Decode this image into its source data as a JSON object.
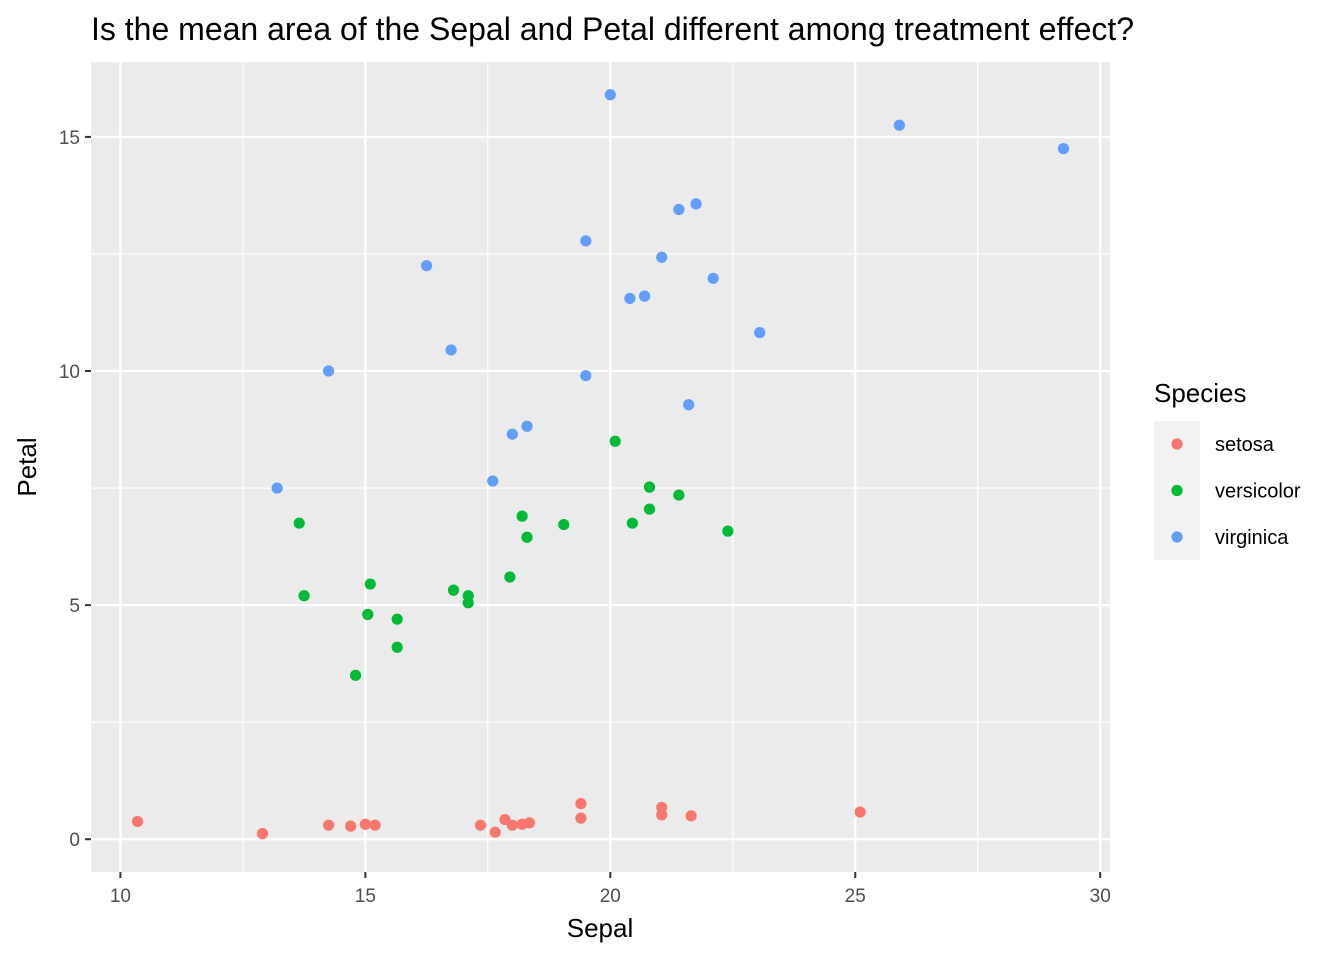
{
  "chart_data": {
    "type": "scatter",
    "title": "Is the mean area of the Sepal and Petal different among treatment effect?",
    "xlabel": "Sepal",
    "ylabel": "Petal",
    "xlim": [
      9.4,
      30.2
    ],
    "ylim": [
      -0.7,
      16.6
    ],
    "x_ticks": [
      10,
      15,
      20,
      25,
      30
    ],
    "y_ticks": [
      0,
      5,
      10,
      15
    ],
    "x_ticks_labels": [
      "10",
      "15",
      "20",
      "25",
      "30"
    ],
    "y_ticks_labels": [
      "0",
      "5",
      "10",
      "15"
    ],
    "grid": true,
    "legend": {
      "title": "Species",
      "placement": "right"
    },
    "series": [
      {
        "name": "setosa",
        "color": "#F8766D",
        "points": [
          [
            10.35,
            0.38
          ],
          [
            12.9,
            0.12
          ],
          [
            14.25,
            0.3
          ],
          [
            14.7,
            0.28
          ],
          [
            15.0,
            0.32
          ],
          [
            15.2,
            0.3
          ],
          [
            17.35,
            0.3
          ],
          [
            17.65,
            0.15
          ],
          [
            17.85,
            0.42
          ],
          [
            18.0,
            0.3
          ],
          [
            18.2,
            0.32
          ],
          [
            18.35,
            0.35
          ],
          [
            19.4,
            0.76
          ],
          [
            19.4,
            0.45
          ],
          [
            21.05,
            0.68
          ],
          [
            21.05,
            0.52
          ],
          [
            21.65,
            0.5
          ],
          [
            25.1,
            0.58
          ]
        ]
      },
      {
        "name": "versicolor",
        "color": "#00BA38",
        "points": [
          [
            13.65,
            6.75
          ],
          [
            13.75,
            5.2
          ],
          [
            14.8,
            3.5
          ],
          [
            15.05,
            4.8
          ],
          [
            15.1,
            5.45
          ],
          [
            15.65,
            4.7
          ],
          [
            15.65,
            4.1
          ],
          [
            16.8,
            5.32
          ],
          [
            17.1,
            5.2
          ],
          [
            17.1,
            5.05
          ],
          [
            17.95,
            5.6
          ],
          [
            18.2,
            6.9
          ],
          [
            18.3,
            6.45
          ],
          [
            19.05,
            6.72
          ],
          [
            20.1,
            8.5
          ],
          [
            20.45,
            6.75
          ],
          [
            20.8,
            7.05
          ],
          [
            20.8,
            7.52
          ],
          [
            21.4,
            7.35
          ],
          [
            22.4,
            6.58
          ]
        ]
      },
      {
        "name": "virginica",
        "color": "#619CFF",
        "points": [
          [
            13.2,
            7.5
          ],
          [
            14.25,
            10.0
          ],
          [
            16.25,
            12.25
          ],
          [
            16.75,
            10.45
          ],
          [
            17.6,
            7.65
          ],
          [
            18.0,
            8.65
          ],
          [
            18.3,
            8.82
          ],
          [
            19.5,
            12.78
          ],
          [
            19.5,
            9.9
          ],
          [
            20.0,
            15.9
          ],
          [
            20.4,
            11.55
          ],
          [
            20.7,
            11.6
          ],
          [
            21.05,
            12.43
          ],
          [
            21.4,
            13.45
          ],
          [
            21.6,
            9.28
          ],
          [
            21.75,
            13.57
          ],
          [
            22.1,
            11.98
          ],
          [
            23.05,
            10.82
          ],
          [
            25.9,
            15.25
          ],
          [
            29.25,
            14.75
          ]
        ]
      }
    ]
  }
}
